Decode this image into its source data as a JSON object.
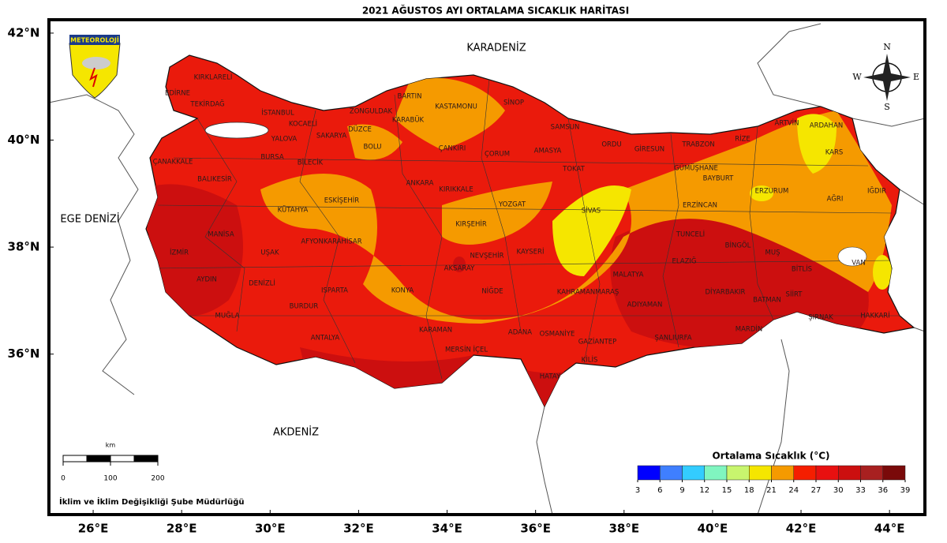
{
  "map": {
    "title": "2021 AĞUSTOS AYI ORTALAMA SICAKLIK HARİTASI",
    "logo": "METEOROLOJİ",
    "xlim": [
      25,
      44.8
    ],
    "ylim": [
      33,
      42.25
    ],
    "lat_ticks": [
      {
        "value": 42,
        "label": "42°N"
      },
      {
        "value": 40,
        "label": "40°N"
      },
      {
        "value": 38,
        "label": "38°N"
      },
      {
        "value": 36,
        "label": "36°N"
      }
    ],
    "lon_ticks": [
      {
        "value": 26,
        "label": "26°E"
      },
      {
        "value": 28,
        "label": "28°E"
      },
      {
        "value": 30,
        "label": "30°E"
      },
      {
        "value": 32,
        "label": "32°E"
      },
      {
        "value": 34,
        "label": "34°E"
      },
      {
        "value": 36,
        "label": "36°E"
      },
      {
        "value": 38,
        "label": "38°E"
      },
      {
        "value": 40,
        "label": "40°E"
      },
      {
        "value": 42,
        "label": "42°E"
      },
      {
        "value": 44,
        "label": "44°E"
      }
    ],
    "seas": [
      "KARADENİZ",
      "EGE DENİZİ",
      "AKDENİZ"
    ],
    "compass": [
      "N",
      "E",
      "S",
      "W"
    ],
    "provinces": [
      "KIRKLARELİ",
      "EDİRNE",
      "TEKİRDAĞ",
      "İSTANBUL",
      "KOCAELİ",
      "ZONGULDAK",
      "BARTIN",
      "KASTAMONU",
      "SİNOP",
      "DÜZCE",
      "BOLU",
      "KARABÜK",
      "SAMSUN",
      "YALOVA",
      "SAKARYA",
      "BURSA",
      "BİLECİK",
      "ÇANKIRI",
      "ÇORUM",
      "AMASYA",
      "ORDU",
      "GİRESUN",
      "TRABZON",
      "RİZE",
      "ARTVİN",
      "ARDAHAN",
      "KARS",
      "ÇANAKKALE",
      "BALIKESİR",
      "ESKİŞEHİR",
      "ANKARA",
      "KIRIKKALE",
      "TOKAT",
      "GÜMÜŞHANE",
      "BAYBURT",
      "ERZURUM",
      "IĞDIR",
      "AĞRI",
      "YOZGAT",
      "SİVAS",
      "ERZİNCAN",
      "KÜTAHYA",
      "MANİSA",
      "KIRŞEHİR",
      "TUNCELİ",
      "AFYONKARAHİSAR",
      "BİNGÖL",
      "İZMİR",
      "UŞAK",
      "NEVŞEHİR",
      "KAYSERİ",
      "MUŞ",
      "ELAZIĞ",
      "VAN",
      "AKSARAY",
      "BİTLİS",
      "MALATYA",
      "AYDIN",
      "DENİZLİ",
      "NİĞDE",
      "KAHRAMANMARAŞ",
      "DİYARBAKIR",
      "SİİRT",
      "BATMAN",
      "KONYA",
      "ISPARTA",
      "BURDUR",
      "ADIYAMAN",
      "MUĞLA",
      "HAKKARİ",
      "ŞIRNAK",
      "MARDİN",
      "KARAMAN",
      "ADANA",
      "OSMANİYE",
      "ANTALYA",
      "ŞANLIURFA",
      "GAZİANTEP",
      "MERSİN İÇEL",
      "KİLİS",
      "HATAY"
    ],
    "legend": {
      "title": "Ortalama Sıcaklık (°C)",
      "ticks": [
        3,
        6,
        9,
        12,
        15,
        18,
        21,
        24,
        27,
        30,
        33,
        36,
        39
      ],
      "colors": [
        "#0000ff",
        "#3f7fff",
        "#33ccff",
        "#80f5c0",
        "#c8f56e",
        "#f5e600",
        "#f59a00",
        "#f51e00",
        "#e81010",
        "#cc0f0f",
        "#a82020",
        "#7a0a0a"
      ]
    },
    "scale_bar": {
      "unit": "km",
      "ticks": [
        0,
        100,
        200
      ]
    },
    "credit": "İklim ve İklim Değişikliği Şube Müdürlüğü"
  }
}
